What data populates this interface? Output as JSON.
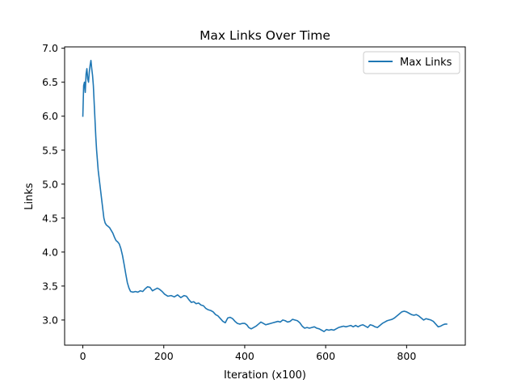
{
  "chart_data": {
    "type": "line",
    "title": "Max Links Over Time",
    "xlabel": "Iteration (x100)",
    "ylabel": "Links",
    "xlim": [
      -45,
      945
    ],
    "ylim": [
      2.63,
      7.02
    ],
    "xticks": [
      0,
      200,
      400,
      600,
      800
    ],
    "yticks": [
      3.0,
      3.5,
      4.0,
      4.5,
      5.0,
      5.5,
      6.0,
      6.5,
      7.0
    ],
    "grid": false,
    "legend_position": "top-right",
    "series": [
      {
        "name": "Max Links",
        "color": "#1f77b4",
        "points": [
          [
            0,
            6.0
          ],
          [
            2,
            6.45
          ],
          [
            4,
            6.5
          ],
          [
            6,
            6.35
          ],
          [
            8,
            6.62
          ],
          [
            10,
            6.7
          ],
          [
            12,
            6.55
          ],
          [
            14,
            6.5
          ],
          [
            16,
            6.65
          ],
          [
            18,
            6.75
          ],
          [
            20,
            6.82
          ],
          [
            22,
            6.7
          ],
          [
            24,
            6.6
          ],
          [
            26,
            6.45
          ],
          [
            28,
            6.2
          ],
          [
            30,
            5.95
          ],
          [
            32,
            5.7
          ],
          [
            34,
            5.5
          ],
          [
            36,
            5.35
          ],
          [
            38,
            5.2
          ],
          [
            40,
            5.1
          ],
          [
            42,
            5.0
          ],
          [
            44,
            4.9
          ],
          [
            46,
            4.8
          ],
          [
            48,
            4.7
          ],
          [
            50,
            4.6
          ],
          [
            52,
            4.5
          ],
          [
            55,
            4.43
          ],
          [
            58,
            4.4
          ],
          [
            62,
            4.38
          ],
          [
            66,
            4.36
          ],
          [
            70,
            4.32
          ],
          [
            74,
            4.28
          ],
          [
            78,
            4.22
          ],
          [
            82,
            4.17
          ],
          [
            86,
            4.15
          ],
          [
            90,
            4.12
          ],
          [
            94,
            4.05
          ],
          [
            98,
            3.95
          ],
          [
            102,
            3.82
          ],
          [
            106,
            3.68
          ],
          [
            110,
            3.55
          ],
          [
            114,
            3.47
          ],
          [
            118,
            3.42
          ],
          [
            124,
            3.41
          ],
          [
            130,
            3.42
          ],
          [
            136,
            3.41
          ],
          [
            142,
            3.43
          ],
          [
            148,
            3.42
          ],
          [
            154,
            3.46
          ],
          [
            160,
            3.49
          ],
          [
            166,
            3.48
          ],
          [
            172,
            3.43
          ],
          [
            178,
            3.45
          ],
          [
            184,
            3.47
          ],
          [
            190,
            3.45
          ],
          [
            196,
            3.42
          ],
          [
            202,
            3.38
          ],
          [
            210,
            3.35
          ],
          [
            218,
            3.36
          ],
          [
            226,
            3.34
          ],
          [
            234,
            3.37
          ],
          [
            242,
            3.33
          ],
          [
            250,
            3.36
          ],
          [
            256,
            3.35
          ],
          [
            262,
            3.3
          ],
          [
            268,
            3.26
          ],
          [
            274,
            3.27
          ],
          [
            280,
            3.24
          ],
          [
            286,
            3.25
          ],
          [
            292,
            3.22
          ],
          [
            298,
            3.21
          ],
          [
            304,
            3.17
          ],
          [
            310,
            3.15
          ],
          [
            316,
            3.14
          ],
          [
            322,
            3.12
          ],
          [
            328,
            3.08
          ],
          [
            334,
            3.06
          ],
          [
            340,
            3.02
          ],
          [
            346,
            2.98
          ],
          [
            352,
            2.96
          ],
          [
            358,
            3.03
          ],
          [
            364,
            3.04
          ],
          [
            370,
            3.02
          ],
          [
            376,
            2.98
          ],
          [
            382,
            2.95
          ],
          [
            388,
            2.94
          ],
          [
            394,
            2.95
          ],
          [
            400,
            2.95
          ],
          [
            405,
            2.93
          ],
          [
            410,
            2.89
          ],
          [
            416,
            2.87
          ],
          [
            422,
            2.89
          ],
          [
            428,
            2.91
          ],
          [
            434,
            2.94
          ],
          [
            440,
            2.97
          ],
          [
            446,
            2.95
          ],
          [
            452,
            2.93
          ],
          [
            458,
            2.94
          ],
          [
            464,
            2.95
          ],
          [
            470,
            2.96
          ],
          [
            476,
            2.97
          ],
          [
            482,
            2.98
          ],
          [
            488,
            2.97
          ],
          [
            494,
            3.0
          ],
          [
            500,
            2.99
          ],
          [
            506,
            2.97
          ],
          [
            512,
            2.98
          ],
          [
            518,
            3.01
          ],
          [
            524,
            3.0
          ],
          [
            530,
            2.99
          ],
          [
            536,
            2.96
          ],
          [
            542,
            2.91
          ],
          [
            548,
            2.88
          ],
          [
            554,
            2.89
          ],
          [
            560,
            2.88
          ],
          [
            566,
            2.89
          ],
          [
            572,
            2.9
          ],
          [
            578,
            2.88
          ],
          [
            584,
            2.87
          ],
          [
            590,
            2.85
          ],
          [
            596,
            2.83
          ],
          [
            602,
            2.86
          ],
          [
            608,
            2.85
          ],
          [
            614,
            2.86
          ],
          [
            620,
            2.85
          ],
          [
            626,
            2.87
          ],
          [
            632,
            2.89
          ],
          [
            638,
            2.9
          ],
          [
            644,
            2.91
          ],
          [
            650,
            2.9
          ],
          [
            656,
            2.91
          ],
          [
            662,
            2.92
          ],
          [
            668,
            2.9
          ],
          [
            674,
            2.92
          ],
          [
            680,
            2.9
          ],
          [
            686,
            2.92
          ],
          [
            692,
            2.93
          ],
          [
            698,
            2.91
          ],
          [
            704,
            2.89
          ],
          [
            710,
            2.93
          ],
          [
            716,
            2.92
          ],
          [
            722,
            2.9
          ],
          [
            728,
            2.89
          ],
          [
            734,
            2.92
          ],
          [
            740,
            2.95
          ],
          [
            746,
            2.97
          ],
          [
            752,
            2.99
          ],
          [
            758,
            3.0
          ],
          [
            764,
            3.01
          ],
          [
            770,
            3.03
          ],
          [
            776,
            3.06
          ],
          [
            782,
            3.09
          ],
          [
            788,
            3.12
          ],
          [
            794,
            3.13
          ],
          [
            800,
            3.12
          ],
          [
            806,
            3.1
          ],
          [
            812,
            3.08
          ],
          [
            818,
            3.07
          ],
          [
            824,
            3.08
          ],
          [
            830,
            3.06
          ],
          [
            836,
            3.03
          ],
          [
            842,
            3.0
          ],
          [
            848,
            3.02
          ],
          [
            854,
            3.01
          ],
          [
            860,
            3.0
          ],
          [
            866,
            2.98
          ],
          [
            872,
            2.94
          ],
          [
            878,
            2.9
          ],
          [
            884,
            2.91
          ],
          [
            890,
            2.93
          ],
          [
            895,
            2.94
          ],
          [
            899,
            2.94
          ]
        ]
      }
    ]
  }
}
